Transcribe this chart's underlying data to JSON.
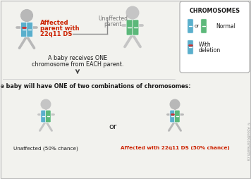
{
  "bg_color": "#f2f2ee",
  "title_text": "The baby will have ONE of two combinations of chromosomes:",
  "middle_text_1": "A baby receives ONE",
  "middle_text_2": "chromosome from EACH parent.",
  "affected_label_1": "Affected",
  "affected_label_2": "parent with",
  "affected_label_3": "22q11 DS",
  "unaffected_label_1": "Unaffected",
  "unaffected_label_2": "parent",
  "unaffected_child_label": "Unaffected (50% chance)",
  "affected_child_label": "Affected with 22q11 DS (50% chance)",
  "chromosomes_title": "CHROMOSOMES",
  "normal_label": "Normal",
  "deletion_label_1": "With",
  "deletion_label_2": "deletion",
  "or_text": "or",
  "blue_color": "#5aafcc",
  "green_color": "#5cb87a",
  "red_band_color": "#cc3333",
  "figure_color": "#b8b8b8",
  "figure_color2": "#c5c5c5",
  "text_red": "#cc2200",
  "text_dark": "#1a1a1a",
  "text_gray": "#777777",
  "watermark": "© AboutKidsHealth.ca",
  "arrow_color": "#444444",
  "connector_color": "#888888",
  "legend_border": "#aaaaaa",
  "white": "#ffffff"
}
